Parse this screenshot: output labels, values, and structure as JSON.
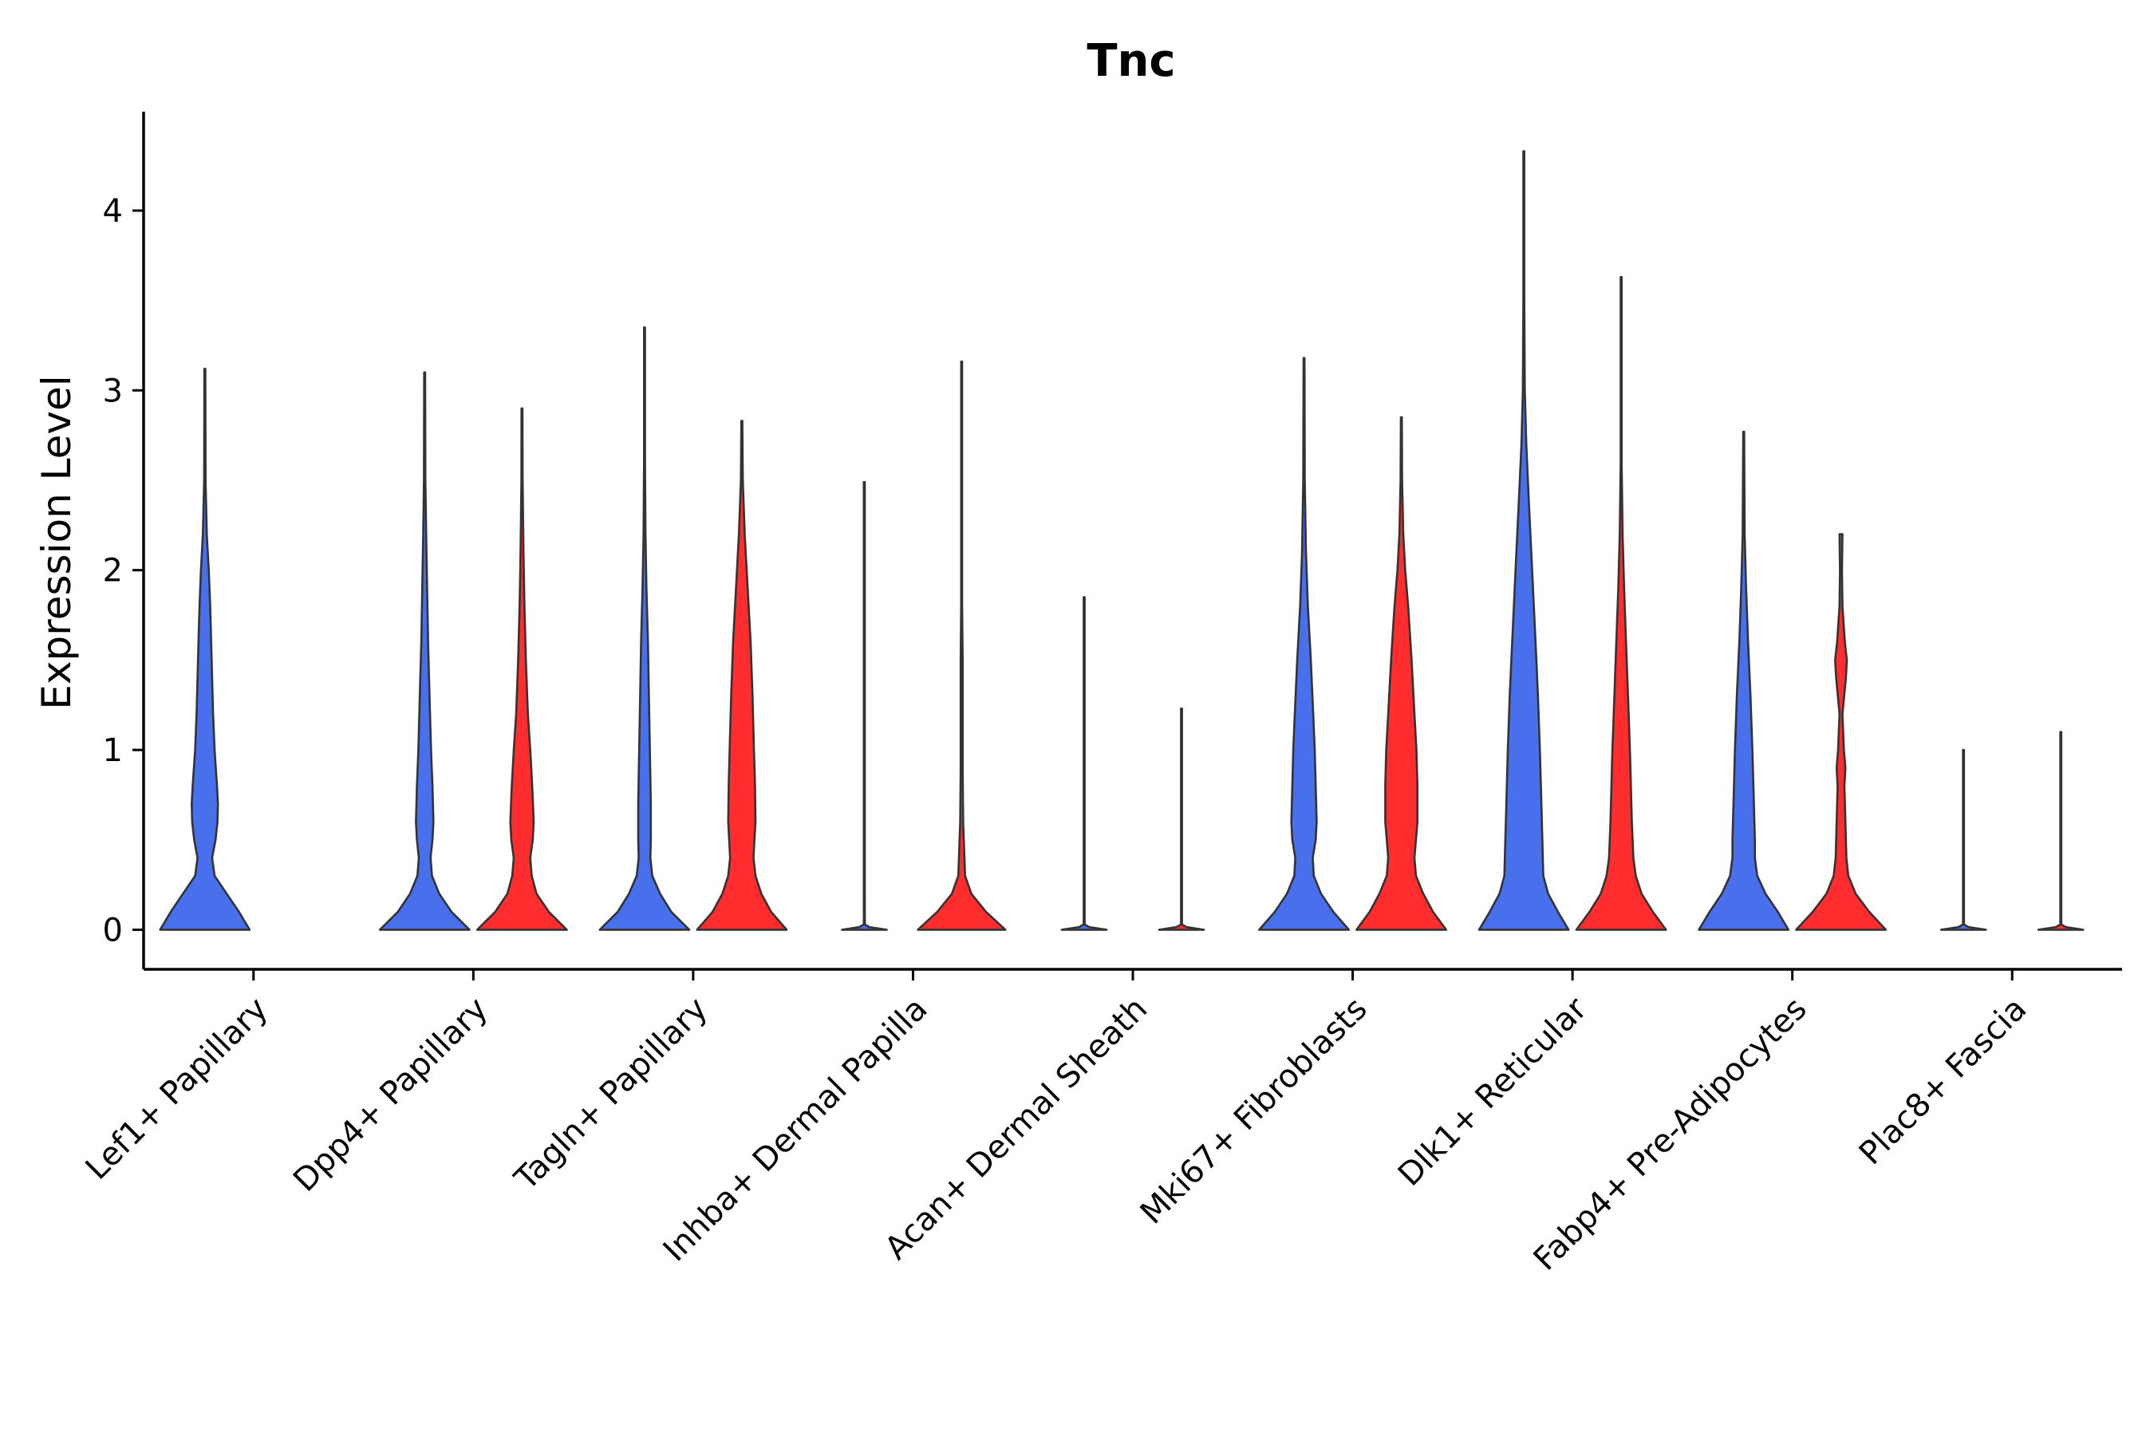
{
  "chart_data": {
    "type": "violin",
    "title": "Tnc",
    "ylabel": "Expression Level",
    "xlabel": "",
    "ylim": [
      -0.22,
      4.55
    ],
    "yticks": [
      0,
      1,
      2,
      3,
      4
    ],
    "categories": [
      "Lef1+ Papillary",
      "Dpp4+ Papillary",
      "Tagln+ Papillary",
      "Inhba+ Dermal Papilla",
      "Acan+ Dermal Sheath",
      "Mki67+ Fibroblasts",
      "Dlk1+ Reticular",
      "Fabp4+ Pre-Adipocytes",
      "Plac8+ Fascia"
    ],
    "colors": {
      "group1": "#4870ED",
      "group2": "#FF2D2D",
      "outline": "#333333"
    },
    "violins": [
      {
        "category": "Lef1+ Papillary",
        "group": "group1",
        "color": "#4870ED",
        "max": 3.12,
        "profile": [
          [
            0,
            0.92
          ],
          [
            0.1,
            0.7
          ],
          [
            0.2,
            0.45
          ],
          [
            0.3,
            0.2
          ],
          [
            0.4,
            0.15
          ],
          [
            0.5,
            0.22
          ],
          [
            0.6,
            0.26
          ],
          [
            0.7,
            0.27
          ],
          [
            0.8,
            0.25
          ],
          [
            1.0,
            0.2
          ],
          [
            1.2,
            0.17
          ],
          [
            1.4,
            0.15
          ],
          [
            1.6,
            0.13
          ],
          [
            1.8,
            0.11
          ],
          [
            2.0,
            0.08
          ],
          [
            2.2,
            0.04
          ],
          [
            2.5,
            0.015
          ],
          [
            3.12,
            0.004
          ]
        ]
      },
      {
        "category": "Dpp4+ Papillary",
        "group": "group1",
        "color": "#4870ED",
        "max": 3.1,
        "profile": [
          [
            0,
            0.92
          ],
          [
            0.1,
            0.55
          ],
          [
            0.2,
            0.3
          ],
          [
            0.3,
            0.15
          ],
          [
            0.4,
            0.12
          ],
          [
            0.5,
            0.16
          ],
          [
            0.6,
            0.18
          ],
          [
            0.8,
            0.16
          ],
          [
            1.0,
            0.13
          ],
          [
            1.3,
            0.1
          ],
          [
            1.6,
            0.07
          ],
          [
            1.9,
            0.05
          ],
          [
            2.2,
            0.03
          ],
          [
            2.5,
            0.015
          ],
          [
            3.1,
            0.004
          ]
        ]
      },
      {
        "category": "Dpp4+ Papillary",
        "group": "group2",
        "color": "#FF2D2D",
        "max": 2.9,
        "profile": [
          [
            0,
            0.92
          ],
          [
            0.1,
            0.55
          ],
          [
            0.2,
            0.3
          ],
          [
            0.3,
            0.2
          ],
          [
            0.4,
            0.17
          ],
          [
            0.5,
            0.22
          ],
          [
            0.6,
            0.24
          ],
          [
            0.8,
            0.21
          ],
          [
            1.0,
            0.17
          ],
          [
            1.2,
            0.12
          ],
          [
            1.5,
            0.08
          ],
          [
            1.8,
            0.05
          ],
          [
            2.1,
            0.03
          ],
          [
            2.5,
            0.012
          ],
          [
            2.9,
            0.004
          ]
        ]
      },
      {
        "category": "Tagln+ Papillary",
        "group": "group1",
        "color": "#4870ED",
        "max": 3.35,
        "profile": [
          [
            0,
            0.92
          ],
          [
            0.1,
            0.55
          ],
          [
            0.2,
            0.32
          ],
          [
            0.3,
            0.16
          ],
          [
            0.4,
            0.12
          ],
          [
            0.5,
            0.13
          ],
          [
            0.7,
            0.13
          ],
          [
            1.0,
            0.11
          ],
          [
            1.3,
            0.09
          ],
          [
            1.6,
            0.07
          ],
          [
            1.9,
            0.04
          ],
          [
            2.2,
            0.02
          ],
          [
            2.6,
            0.01
          ],
          [
            3.35,
            0.003
          ]
        ]
      },
      {
        "category": "Tagln+ Papillary",
        "group": "group2",
        "color": "#FF2D2D",
        "max": 2.83,
        "profile": [
          [
            0,
            0.92
          ],
          [
            0.1,
            0.6
          ],
          [
            0.2,
            0.4
          ],
          [
            0.3,
            0.28
          ],
          [
            0.4,
            0.24
          ],
          [
            0.5,
            0.26
          ],
          [
            0.6,
            0.28
          ],
          [
            0.8,
            0.27
          ],
          [
            1.0,
            0.25
          ],
          [
            1.3,
            0.22
          ],
          [
            1.6,
            0.18
          ],
          [
            1.9,
            0.12
          ],
          [
            2.2,
            0.06
          ],
          [
            2.5,
            0.02
          ],
          [
            2.83,
            0.004
          ]
        ]
      },
      {
        "category": "Inhba+ Dermal Papilla",
        "group": "group1",
        "color": "#4870ED",
        "max": 2.49,
        "profile": [
          [
            0,
            0.46
          ],
          [
            0.015,
            0.1
          ],
          [
            0.03,
            0.01
          ],
          [
            0.2,
            0.004
          ],
          [
            2.49,
            0.004
          ]
        ]
      },
      {
        "category": "Inhba+ Dermal Papilla",
        "group": "group2",
        "color": "#FF2D2D",
        "max": 3.16,
        "profile": [
          [
            0,
            0.9
          ],
          [
            0.1,
            0.5
          ],
          [
            0.2,
            0.2
          ],
          [
            0.3,
            0.07
          ],
          [
            0.45,
            0.05
          ],
          [
            0.6,
            0.03
          ],
          [
            0.9,
            0.02
          ],
          [
            1.2,
            0.02
          ],
          [
            1.5,
            0.02
          ],
          [
            1.8,
            0.008
          ],
          [
            3.16,
            0.004
          ]
        ]
      },
      {
        "category": "Acan+ Dermal Sheath",
        "group": "group1",
        "color": "#4870ED",
        "max": 1.85,
        "profile": [
          [
            0,
            0.46
          ],
          [
            0.015,
            0.1
          ],
          [
            0.03,
            0.01
          ],
          [
            0.2,
            0.004
          ],
          [
            1.85,
            0.004
          ]
        ]
      },
      {
        "category": "Acan+ Dermal Sheath",
        "group": "group2",
        "color": "#FF2D2D",
        "max": 1.23,
        "profile": [
          [
            0,
            0.46
          ],
          [
            0.015,
            0.1
          ],
          [
            0.03,
            0.01
          ],
          [
            0.2,
            0.004
          ],
          [
            1.23,
            0.004
          ]
        ]
      },
      {
        "category": "Mki67+ Fibroblasts",
        "group": "group1",
        "color": "#4870ED",
        "max": 3.18,
        "profile": [
          [
            0,
            0.92
          ],
          [
            0.1,
            0.6
          ],
          [
            0.2,
            0.35
          ],
          [
            0.3,
            0.2
          ],
          [
            0.4,
            0.18
          ],
          [
            0.5,
            0.24
          ],
          [
            0.6,
            0.26
          ],
          [
            0.8,
            0.24
          ],
          [
            1.0,
            0.22
          ],
          [
            1.2,
            0.19
          ],
          [
            1.5,
            0.14
          ],
          [
            1.8,
            0.08
          ],
          [
            2.1,
            0.04
          ],
          [
            2.5,
            0.015
          ],
          [
            3.18,
            0.004
          ]
        ]
      },
      {
        "category": "Mki67+ Fibroblasts",
        "group": "group2",
        "color": "#FF2D2D",
        "max": 2.85,
        "profile": [
          [
            0,
            0.92
          ],
          [
            0.1,
            0.65
          ],
          [
            0.2,
            0.45
          ],
          [
            0.3,
            0.3
          ],
          [
            0.4,
            0.27
          ],
          [
            0.5,
            0.3
          ],
          [
            0.6,
            0.33
          ],
          [
            0.8,
            0.33
          ],
          [
            1.0,
            0.31
          ],
          [
            1.2,
            0.27
          ],
          [
            1.5,
            0.21
          ],
          [
            1.8,
            0.14
          ],
          [
            2.0,
            0.08
          ],
          [
            2.2,
            0.04
          ],
          [
            2.5,
            0.015
          ],
          [
            2.85,
            0.004
          ]
        ]
      },
      {
        "category": "Dlk1+ Reticular",
        "group": "group1",
        "color": "#4870ED",
        "max": 4.33,
        "profile": [
          [
            0,
            0.92
          ],
          [
            0.1,
            0.7
          ],
          [
            0.2,
            0.5
          ],
          [
            0.3,
            0.4
          ],
          [
            0.5,
            0.38
          ],
          [
            0.7,
            0.36
          ],
          [
            1.0,
            0.33
          ],
          [
            1.3,
            0.29
          ],
          [
            1.6,
            0.24
          ],
          [
            2.0,
            0.17
          ],
          [
            2.4,
            0.1
          ],
          [
            2.7,
            0.05
          ],
          [
            3.0,
            0.02
          ],
          [
            3.5,
            0.008
          ],
          [
            4.33,
            0.003
          ]
        ]
      },
      {
        "category": "Dlk1+ Reticular",
        "group": "group2",
        "color": "#FF2D2D",
        "max": 3.63,
        "profile": [
          [
            0,
            0.92
          ],
          [
            0.1,
            0.65
          ],
          [
            0.2,
            0.42
          ],
          [
            0.3,
            0.3
          ],
          [
            0.4,
            0.25
          ],
          [
            0.6,
            0.22
          ],
          [
            0.8,
            0.2
          ],
          [
            1.0,
            0.18
          ],
          [
            1.3,
            0.14
          ],
          [
            1.6,
            0.1
          ],
          [
            1.9,
            0.06
          ],
          [
            2.2,
            0.03
          ],
          [
            2.6,
            0.01
          ],
          [
            3.63,
            0.003
          ]
        ]
      },
      {
        "category": "Fabp4+ Pre-Adipocytes",
        "group": "group1",
        "color": "#4870ED",
        "max": 2.77,
        "profile": [
          [
            0,
            0.92
          ],
          [
            0.1,
            0.7
          ],
          [
            0.2,
            0.45
          ],
          [
            0.3,
            0.28
          ],
          [
            0.4,
            0.23
          ],
          [
            0.5,
            0.23
          ],
          [
            0.7,
            0.21
          ],
          [
            1.0,
            0.18
          ],
          [
            1.3,
            0.14
          ],
          [
            1.6,
            0.09
          ],
          [
            1.9,
            0.05
          ],
          [
            2.2,
            0.02
          ],
          [
            2.77,
            0.004
          ]
        ]
      },
      {
        "category": "Fabp4+ Pre-Adipocytes",
        "group": "group2",
        "color": "#FF2D2D",
        "max": 2.2,
        "profile": [
          [
            0,
            0.92
          ],
          [
            0.1,
            0.58
          ],
          [
            0.2,
            0.3
          ],
          [
            0.3,
            0.15
          ],
          [
            0.4,
            0.11
          ],
          [
            0.6,
            0.09
          ],
          [
            0.8,
            0.07
          ],
          [
            0.9,
            0.09
          ],
          [
            1.0,
            0.06
          ],
          [
            1.2,
            0.03
          ],
          [
            1.4,
            0.1
          ],
          [
            1.5,
            0.12
          ],
          [
            1.6,
            0.08
          ],
          [
            1.8,
            0.03
          ],
          [
            2.0,
            0.02
          ],
          [
            2.2,
            0.03
          ]
        ]
      },
      {
        "category": "Plac8+ Fascia",
        "group": "group1",
        "color": "#4870ED",
        "max": 1.0,
        "profile": [
          [
            0,
            0.46
          ],
          [
            0.015,
            0.1
          ],
          [
            0.03,
            0.01
          ],
          [
            0.2,
            0.004
          ],
          [
            1.0,
            0.004
          ]
        ]
      },
      {
        "category": "Plac8+ Fascia",
        "group": "group2",
        "color": "#FF2D2D",
        "max": 1.1,
        "profile": [
          [
            0,
            0.46
          ],
          [
            0.015,
            0.1
          ],
          [
            0.03,
            0.01
          ],
          [
            0.2,
            0.004
          ],
          [
            1.1,
            0.004
          ]
        ]
      }
    ]
  }
}
